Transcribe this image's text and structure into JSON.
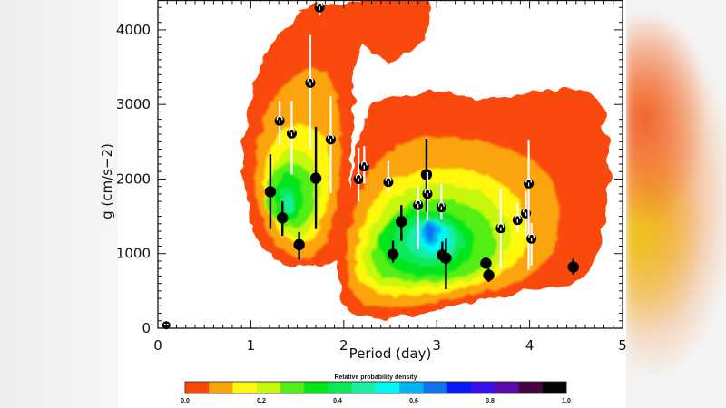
{
  "chart_data": {
    "type": "heatmap",
    "title": "",
    "xlabel": "Period (day)",
    "ylabel": "g (cm/s−2)",
    "xlim": [
      0,
      5
    ],
    "ylim": [
      0,
      4400
    ],
    "xticks": [
      "0",
      "1",
      "2",
      "3",
      "4",
      "5"
    ],
    "yticks": [
      "0",
      "1000",
      "2000",
      "3000",
      "4000"
    ],
    "grid": false,
    "colorbar": {
      "label": "Relative probability density",
      "ticks": [
        "0.0",
        "0.2",
        "0.4",
        "0.6",
        "0.8",
        "1.0"
      ],
      "range": [
        0.0,
        1.0
      ],
      "colors": [
        "#fa4a0a",
        "#fba40a",
        "#fff80c",
        "#c6f70d",
        "#53ee17",
        "#00e51a",
        "#0ce958",
        "#18efa2",
        "#00f7f2",
        "#00b4f2",
        "#1172f2",
        "#0a1af7",
        "#3710ea",
        "#5a0aa8",
        "#430740",
        "#050505"
      ]
    },
    "series": [
      {
        "name": "filled points (black error bars)",
        "marker": "filled-circle",
        "points": [
          {
            "x": 1.21,
            "y": 1830,
            "ylo": 1330,
            "yhi": 2330
          },
          {
            "x": 1.34,
            "y": 1480,
            "ylo": 1240,
            "yhi": 1700
          },
          {
            "x": 1.52,
            "y": 1120,
            "ylo": 920,
            "yhi": 1290
          },
          {
            "x": 1.7,
            "y": 2010,
            "ylo": 1330,
            "yhi": 2700
          },
          {
            "x": 2.53,
            "y": 990,
            "ylo": 880,
            "yhi": 1170
          },
          {
            "x": 2.62,
            "y": 1430,
            "ylo": 1170,
            "yhi": 1650
          },
          {
            "x": 2.89,
            "y": 2060,
            "ylo": 1560,
            "yhi": 2540
          },
          {
            "x": 3.06,
            "y": 980,
            "ylo": 880,
            "yhi": 1160
          },
          {
            "x": 3.1,
            "y": 940,
            "ylo": 520,
            "yhi": 1200
          },
          {
            "x": 3.53,
            "y": 870,
            "ylo": 810,
            "yhi": 950
          },
          {
            "x": 3.56,
            "y": 710,
            "ylo": 620,
            "yhi": 800
          },
          {
            "x": 4.47,
            "y": 820,
            "ylo": 720,
            "yhi": 930
          },
          {
            "x": 0.09,
            "y": 40,
            "ylo": 40,
            "yhi": 40
          }
        ]
      },
      {
        "name": "open points (white error bars)",
        "marker": "open-circle",
        "points": [
          {
            "x": 1.74,
            "y": 4300,
            "ylo": 4200,
            "yhi": 4400
          },
          {
            "x": 1.31,
            "y": 2780,
            "ylo": 2450,
            "yhi": 3050
          },
          {
            "x": 1.44,
            "y": 2610,
            "ylo": 2060,
            "yhi": 3050
          },
          {
            "x": 1.64,
            "y": 3290,
            "ylo": 2410,
            "yhi": 3930
          },
          {
            "x": 1.86,
            "y": 2530,
            "ylo": 1810,
            "yhi": 3110
          },
          {
            "x": 2.16,
            "y": 2000,
            "ylo": 1700,
            "yhi": 2420
          },
          {
            "x": 2.22,
            "y": 2170,
            "ylo": 1940,
            "yhi": 2440
          },
          {
            "x": 2.48,
            "y": 1960,
            "ylo": 1820,
            "yhi": 2240
          },
          {
            "x": 2.8,
            "y": 1650,
            "ylo": 1060,
            "yhi": 1900
          },
          {
            "x": 2.9,
            "y": 1800,
            "ylo": 1450,
            "yhi": 2090
          },
          {
            "x": 3.05,
            "y": 1620,
            "ylo": 1460,
            "yhi": 1930
          },
          {
            "x": 3.69,
            "y": 1340,
            "ylo": 800,
            "yhi": 1870
          },
          {
            "x": 3.87,
            "y": 1450,
            "ylo": 1290,
            "yhi": 1680
          },
          {
            "x": 3.96,
            "y": 1540,
            "ylo": 1230,
            "yhi": 1840
          },
          {
            "x": 3.99,
            "y": 1940,
            "ylo": 780,
            "yhi": 2530
          },
          {
            "x": 4.02,
            "y": 1200,
            "ylo": 840,
            "yhi": 1410
          }
        ]
      }
    ],
    "density_regions": [
      {
        "label": "upper-left lobe",
        "x_range": [
          0.9,
          2.0
        ],
        "y_range": [
          950,
          4400
        ],
        "peak": {
          "x": 1.35,
          "y": 1750,
          "value": 0.55
        }
      },
      {
        "label": "lower-right lobe",
        "x_range": [
          1.95,
          4.9
        ],
        "y_range": [
          200,
          2800
        ],
        "peak": {
          "x": 2.9,
          "y": 1280,
          "value": 0.75
        }
      }
    ]
  }
}
